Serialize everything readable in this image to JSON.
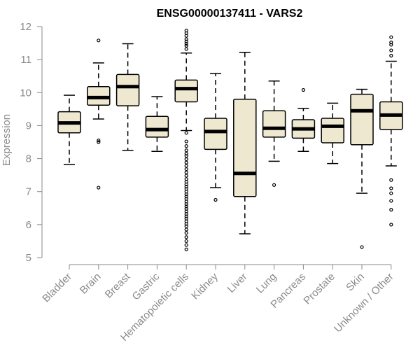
{
  "chart_data": {
    "type": "boxplot",
    "title": "ENSG00000137411 - VARS2",
    "xlabel": "",
    "ylabel": "Expression",
    "ylim": [
      5,
      12
    ],
    "yticks": [
      5,
      6,
      7,
      8,
      9,
      10,
      11,
      12
    ],
    "categories": [
      "Bladder",
      "Brain",
      "Breast",
      "Gastric",
      "Hematopoietic cells",
      "Kidney",
      "Liver",
      "Lung",
      "Pancreas",
      "Prostate",
      "Skin",
      "Unknown / Other"
    ],
    "boxes": [
      {
        "name": "Bladder",
        "whisker_low": 7.82,
        "q1": 8.78,
        "median": 9.08,
        "q3": 9.42,
        "whisker_high": 9.92,
        "outliers": []
      },
      {
        "name": "Brain",
        "whisker_low": 9.2,
        "q1": 9.62,
        "median": 9.85,
        "q3": 10.18,
        "whisker_high": 10.9,
        "outliers": [
          11.58,
          8.55,
          8.5,
          7.12
        ]
      },
      {
        "name": "Breast",
        "whisker_low": 8.25,
        "q1": 9.6,
        "median": 10.18,
        "q3": 10.55,
        "whisker_high": 11.48,
        "outliers": []
      },
      {
        "name": "Gastric",
        "whisker_low": 8.22,
        "q1": 8.65,
        "median": 8.88,
        "q3": 9.28,
        "whisker_high": 9.88,
        "outliers": []
      },
      {
        "name": "Hematopoietic cells",
        "whisker_low": 8.85,
        "q1": 9.72,
        "median": 10.12,
        "q3": 10.38,
        "whisker_high": 11.2,
        "outliers": [
          11.88,
          11.8,
          11.72,
          11.62,
          11.55,
          11.48,
          11.42,
          11.32,
          8.78,
          8.52,
          8.38,
          8.25,
          8.15,
          8.08,
          7.98,
          7.88,
          7.78,
          7.68,
          7.58,
          7.48,
          7.38,
          7.3,
          7.22,
          7.15,
          7.08,
          7.0,
          6.92,
          6.85,
          6.78,
          6.7,
          6.62,
          6.55,
          6.48,
          6.4,
          6.32,
          6.25,
          6.18,
          6.1,
          6.02,
          5.95,
          5.85,
          5.75,
          5.62,
          5.5,
          5.38,
          5.25
        ]
      },
      {
        "name": "Kidney",
        "whisker_low": 7.12,
        "q1": 8.28,
        "median": 8.82,
        "q3": 9.22,
        "whisker_high": 10.58,
        "outliers": [
          6.75
        ]
      },
      {
        "name": "Liver",
        "whisker_low": 5.72,
        "q1": 6.85,
        "median": 7.55,
        "q3": 9.8,
        "whisker_high": 11.22,
        "outliers": []
      },
      {
        "name": "Lung",
        "whisker_low": 7.92,
        "q1": 8.65,
        "median": 8.92,
        "q3": 9.45,
        "whisker_high": 10.35,
        "outliers": [
          7.2
        ]
      },
      {
        "name": "Pancreas",
        "whisker_low": 8.22,
        "q1": 8.62,
        "median": 8.9,
        "q3": 9.18,
        "whisker_high": 9.52,
        "outliers": [
          10.08
        ]
      },
      {
        "name": "Prostate",
        "whisker_low": 7.85,
        "q1": 8.48,
        "median": 8.98,
        "q3": 9.22,
        "whisker_high": 9.68,
        "outliers": []
      },
      {
        "name": "Skin",
        "whisker_low": 6.95,
        "q1": 8.42,
        "median": 9.45,
        "q3": 9.95,
        "whisker_high": 10.1,
        "outliers": [
          5.32
        ]
      },
      {
        "name": "Unknown / Other",
        "whisker_low": 7.78,
        "q1": 8.88,
        "median": 9.32,
        "q3": 9.72,
        "whisker_high": 10.95,
        "outliers": [
          11.68,
          11.52,
          11.45,
          11.28,
          11.12,
          7.35,
          7.1,
          6.95,
          6.72,
          6.45,
          6.0
        ]
      }
    ],
    "colors": {
      "box_fill": "#efe8d0",
      "stroke": "#000000",
      "axis": "#8a8a8a"
    }
  }
}
